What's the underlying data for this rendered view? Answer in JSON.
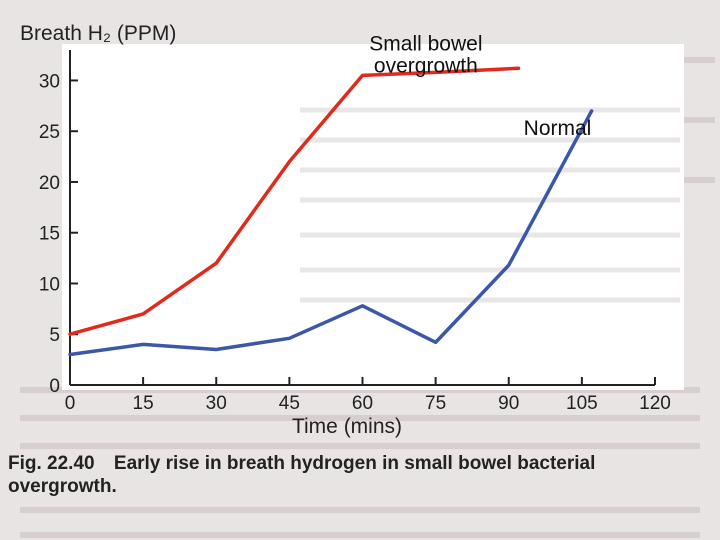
{
  "chart_data": {
    "type": "line",
    "title": "",
    "ylabel": "Breath H₂ (PPM)",
    "xlabel": "Time (mins)",
    "xlim": [
      0,
      120
    ],
    "ylim": [
      0,
      33
    ],
    "xticks": [
      0,
      15,
      30,
      45,
      60,
      75,
      90,
      105,
      120
    ],
    "yticks": [
      0,
      5,
      10,
      15,
      20,
      25,
      30
    ],
    "series": [
      {
        "name": "Small bowel overgrowth",
        "label_lines": [
          "Small bowel",
          "overgrowth"
        ],
        "color": "#e02a1b",
        "x": [
          0,
          15,
          30,
          45,
          60,
          75,
          92
        ],
        "y": [
          5,
          7,
          12,
          22,
          30.5,
          30.8,
          31.2
        ]
      },
      {
        "name": "Normal",
        "label_lines": [
          "Normal"
        ],
        "color": "#3a57a8",
        "x": [
          0,
          15,
          30,
          45,
          60,
          75,
          90,
          107
        ],
        "y": [
          3,
          4,
          3.5,
          4.6,
          7.8,
          4.2,
          11.8,
          27
        ]
      }
    ]
  },
  "caption": {
    "figure_number": "Fig. 22.40",
    "text": "Early rise in breath hydrogen in small bowel bacterial overgrowth."
  },
  "colors": {
    "chart_background": "#ffffff",
    "page_background": "#e9e4e4",
    "axis": "#222222"
  }
}
